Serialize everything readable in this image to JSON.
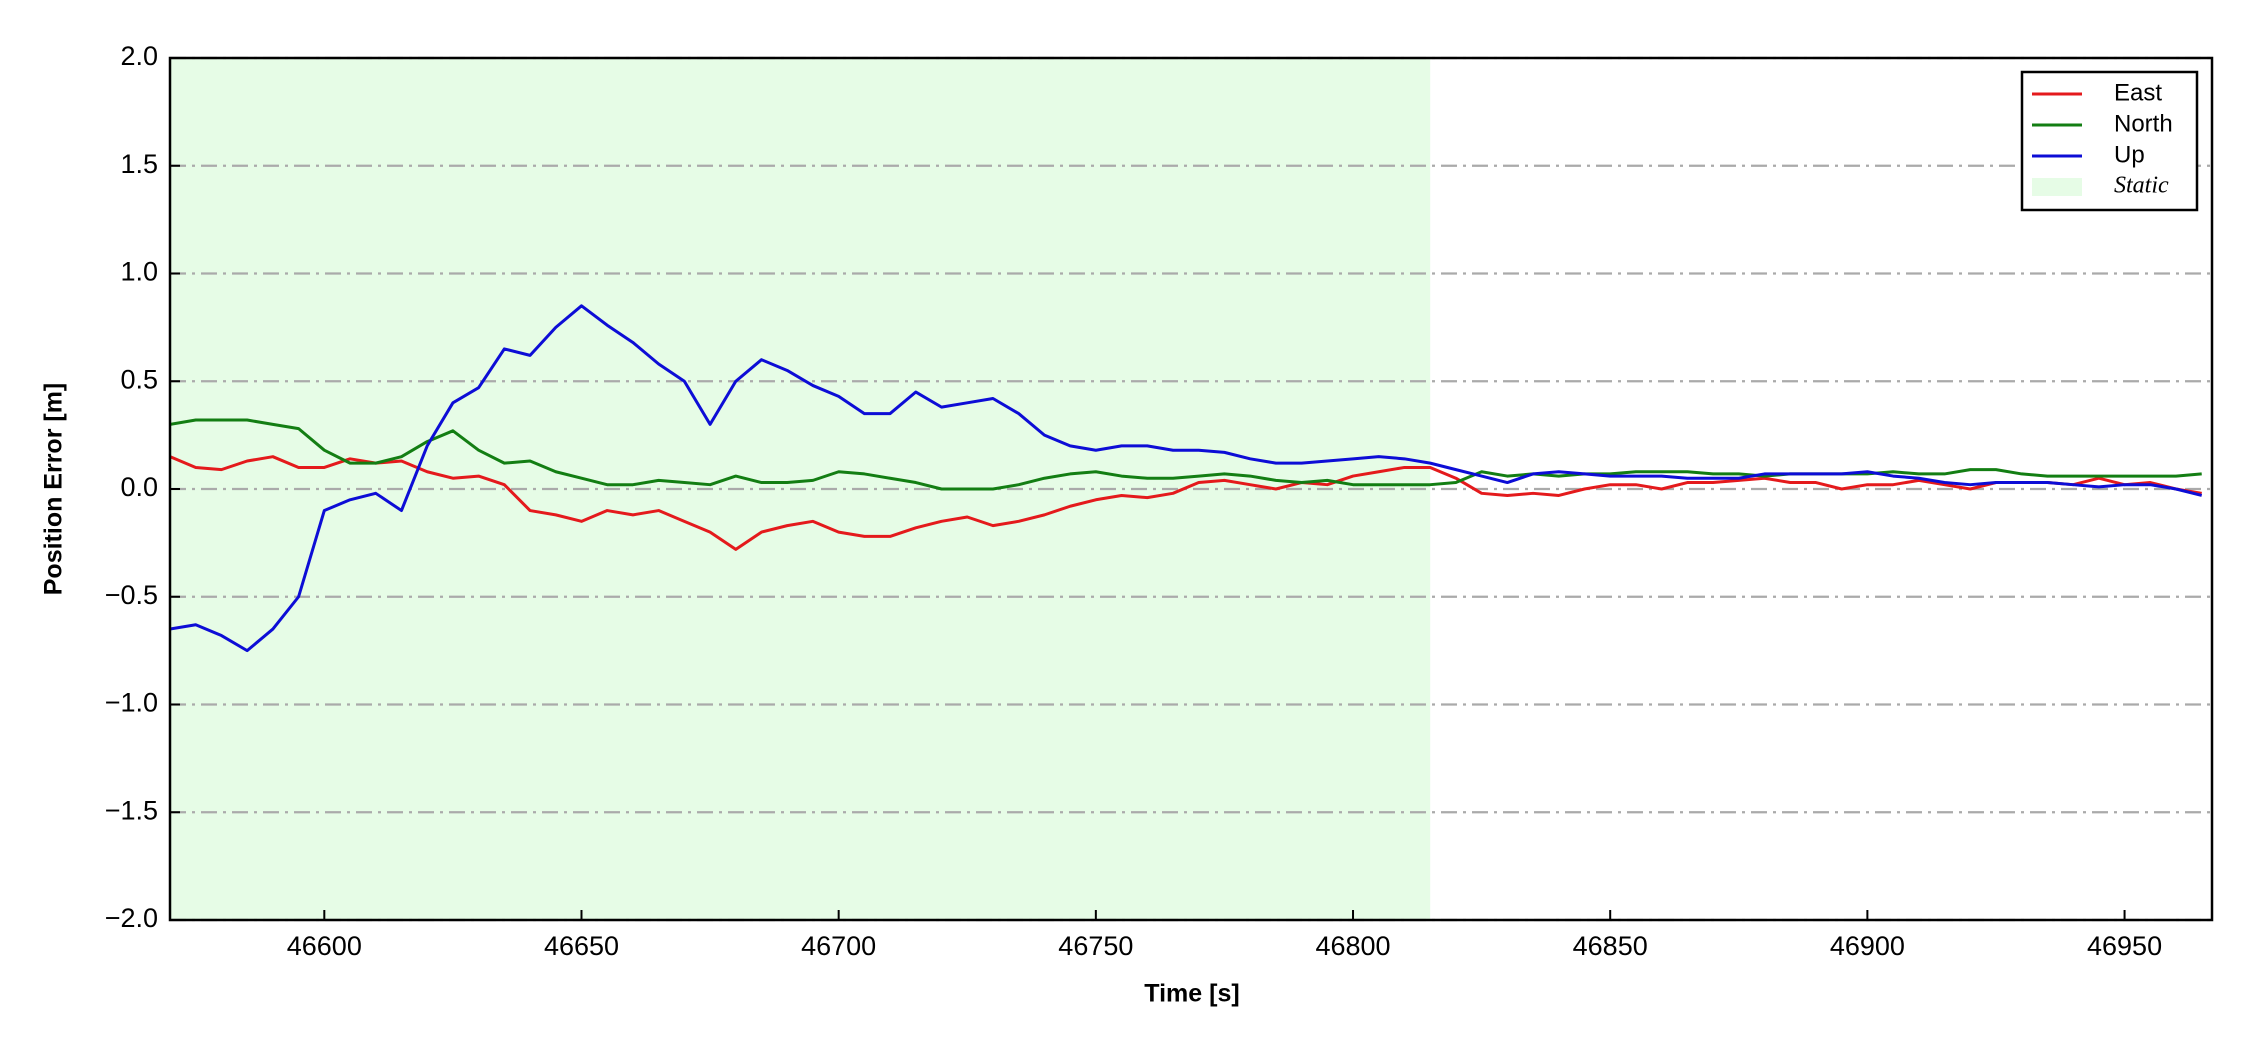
{
  "chart_data": {
    "type": "line",
    "xlabel": "Time [s]",
    "ylabel": "Position Error [m]",
    "x": [
      46570,
      46575,
      46580,
      46585,
      46590,
      46595,
      46600,
      46605,
      46610,
      46615,
      46620,
      46625,
      46630,
      46635,
      46640,
      46645,
      46650,
      46655,
      46660,
      46665,
      46670,
      46675,
      46680,
      46685,
      46690,
      46695,
      46700,
      46705,
      46710,
      46715,
      46720,
      46725,
      46730,
      46735,
      46740,
      46745,
      46750,
      46755,
      46760,
      46765,
      46770,
      46775,
      46780,
      46785,
      46790,
      46795,
      46800,
      46805,
      46810,
      46815,
      46820,
      46825,
      46830,
      46835,
      46840,
      46845,
      46850,
      46855,
      46860,
      46865,
      46870,
      46875,
      46880,
      46885,
      46890,
      46895,
      46900,
      46905,
      46910,
      46915,
      46920,
      46925,
      46930,
      46935,
      46940,
      46945,
      46950,
      46955,
      46960,
      46965
    ],
    "series": [
      {
        "name": "East",
        "color": "#e41a1c",
        "values": [
          0.15,
          0.1,
          0.09,
          0.13,
          0.15,
          0.1,
          0.1,
          0.14,
          0.12,
          0.13,
          0.08,
          0.05,
          0.06,
          0.02,
          -0.1,
          -0.12,
          -0.15,
          -0.1,
          -0.12,
          -0.1,
          -0.15,
          -0.2,
          -0.28,
          -0.2,
          -0.17,
          -0.15,
          -0.2,
          -0.22,
          -0.22,
          -0.18,
          -0.15,
          -0.13,
          -0.17,
          -0.15,
          -0.12,
          -0.08,
          -0.05,
          -0.03,
          -0.04,
          -0.02,
          0.03,
          0.04,
          0.02,
          0.0,
          0.03,
          0.02,
          0.06,
          0.08,
          0.1,
          0.1,
          0.05,
          -0.02,
          -0.03,
          -0.02,
          -0.03,
          0.0,
          0.02,
          0.02,
          0.0,
          0.03,
          0.03,
          0.04,
          0.05,
          0.03,
          0.03,
          0.0,
          0.02,
          0.02,
          0.04,
          0.02,
          0.0,
          0.03,
          0.03,
          0.03,
          0.02,
          0.05,
          0.02,
          0.03,
          0.0,
          -0.02
        ]
      },
      {
        "name": "North",
        "color": "#137e13",
        "values": [
          0.3,
          0.32,
          0.32,
          0.32,
          0.3,
          0.28,
          0.18,
          0.12,
          0.12,
          0.15,
          0.22,
          0.27,
          0.18,
          0.12,
          0.13,
          0.08,
          0.05,
          0.02,
          0.02,
          0.04,
          0.03,
          0.02,
          0.06,
          0.03,
          0.03,
          0.04,
          0.08,
          0.07,
          0.05,
          0.03,
          0.0,
          0.0,
          0.0,
          0.02,
          0.05,
          0.07,
          0.08,
          0.06,
          0.05,
          0.05,
          0.06,
          0.07,
          0.06,
          0.04,
          0.03,
          0.04,
          0.02,
          0.02,
          0.02,
          0.02,
          0.03,
          0.08,
          0.06,
          0.07,
          0.06,
          0.07,
          0.07,
          0.08,
          0.08,
          0.08,
          0.07,
          0.07,
          0.06,
          0.07,
          0.07,
          0.07,
          0.07,
          0.08,
          0.07,
          0.07,
          0.09,
          0.09,
          0.07,
          0.06,
          0.06,
          0.06,
          0.06,
          0.06,
          0.06,
          0.07
        ]
      },
      {
        "name": "Up",
        "color": "#0d0dd6",
        "values": [
          -0.65,
          -0.63,
          -0.68,
          -0.75,
          -0.65,
          -0.5,
          -0.1,
          -0.05,
          -0.02,
          -0.1,
          0.2,
          0.4,
          0.47,
          0.65,
          0.62,
          0.75,
          0.85,
          0.76,
          0.68,
          0.58,
          0.5,
          0.3,
          0.5,
          0.6,
          0.55,
          0.48,
          0.43,
          0.35,
          0.35,
          0.45,
          0.38,
          0.4,
          0.42,
          0.35,
          0.25,
          0.2,
          0.18,
          0.2,
          0.2,
          0.18,
          0.18,
          0.17,
          0.14,
          0.12,
          0.12,
          0.13,
          0.14,
          0.15,
          0.14,
          0.12,
          0.09,
          0.06,
          0.03,
          0.07,
          0.08,
          0.07,
          0.06,
          0.06,
          0.06,
          0.05,
          0.05,
          0.05,
          0.07,
          0.07,
          0.07,
          0.07,
          0.08,
          0.06,
          0.05,
          0.03,
          0.02,
          0.03,
          0.03,
          0.03,
          0.02,
          0.01,
          0.02,
          0.02,
          0.0,
          -0.03
        ]
      }
    ],
    "shaded_region": {
      "name": "Static",
      "start": 46570,
      "end": 46815,
      "color": "#e6fce6"
    },
    "xlim": [
      46570,
      46967
    ],
    "ylim": [
      -2.0,
      2.0
    ],
    "xticks": [
      46600,
      46650,
      46700,
      46750,
      46800,
      46850,
      46900,
      46950
    ],
    "yticks": [
      {
        "value": -2.0,
        "label": "−2.0"
      },
      {
        "value": -1.5,
        "label": "−1.5"
      },
      {
        "value": -1.0,
        "label": "−1.0"
      },
      {
        "value": -0.5,
        "label": "−0.5"
      },
      {
        "value": 0.0,
        "label": "0.0"
      },
      0.5,
      {
        "value": 1.0,
        "label": "1.0"
      },
      1.5,
      {
        "value": 2.0,
        "label": "2.0"
      }
    ],
    "grid": "y",
    "legend": "upper right"
  }
}
